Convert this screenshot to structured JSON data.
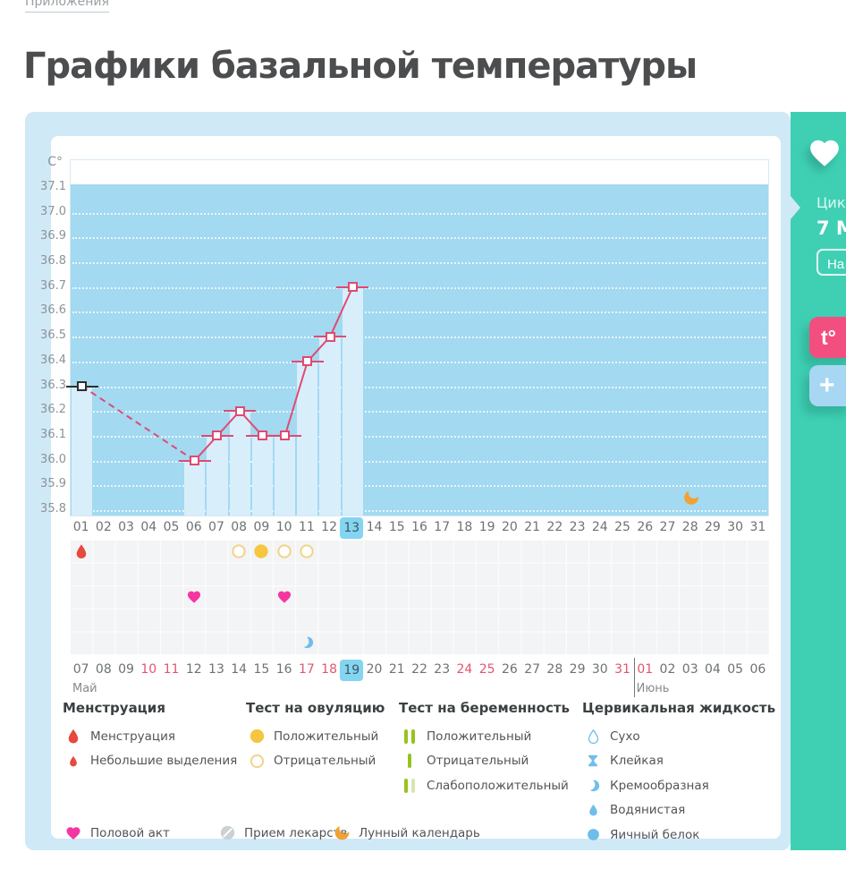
{
  "header": {
    "breadcrumb": "Приложения",
    "title": "Графики базальной температуры"
  },
  "chart_data": {
    "type": "line",
    "title": "Графики базальной температуры",
    "unit_label": "C°",
    "ylim": [
      35.8,
      37.1
    ],
    "y_ticks": [
      "37.1",
      "37.0",
      "36.9",
      "36.8",
      "36.7",
      "36.6",
      "36.5",
      "36.4",
      "36.3",
      "36.2",
      "36.1",
      "36.0",
      "35.9",
      "35.8"
    ],
    "x_cycle_days": [
      "01",
      "02",
      "03",
      "04",
      "05",
      "06",
      "07",
      "08",
      "09",
      "10",
      "11",
      "12",
      "13",
      "14",
      "15",
      "16",
      "17",
      "18",
      "19",
      "20",
      "21",
      "22",
      "23",
      "24",
      "25",
      "26",
      "27",
      "28",
      "29",
      "30",
      "31"
    ],
    "selected_cycle_day": "13",
    "points": [
      {
        "day": 1,
        "temp": 36.3,
        "marker": "black"
      },
      {
        "day": 6,
        "temp": 36.0,
        "marker": "pink"
      },
      {
        "day": 7,
        "temp": 36.1,
        "marker": "pink"
      },
      {
        "day": 8,
        "temp": 36.2,
        "marker": "pink"
      },
      {
        "day": 9,
        "temp": 36.1,
        "marker": "pink"
      },
      {
        "day": 10,
        "temp": 36.1,
        "marker": "pink"
      },
      {
        "day": 11,
        "temp": 36.4,
        "marker": "pink"
      },
      {
        "day": 12,
        "temp": 36.5,
        "marker": "pink"
      },
      {
        "day": 13,
        "temp": 36.7,
        "marker": "pink"
      }
    ],
    "line_segments": [
      {
        "from": 1,
        "to": 6,
        "style": "dashed"
      },
      {
        "from": 6,
        "to": 13,
        "style": "solid"
      }
    ],
    "plot_icons": [
      {
        "day": 28,
        "temp": 35.85,
        "icon": "moon"
      }
    ]
  },
  "icon_grid": {
    "rows": 5,
    "icons": [
      {
        "day": 1,
        "row": 1,
        "icon": "menstruation-drop"
      },
      {
        "day": 8,
        "row": 1,
        "icon": "ovulation-negative"
      },
      {
        "day": 9,
        "row": 1,
        "icon": "ovulation-positive"
      },
      {
        "day": 10,
        "row": 1,
        "icon": "ovulation-negative"
      },
      {
        "day": 11,
        "row": 1,
        "icon": "ovulation-negative"
      },
      {
        "day": 6,
        "row": 3,
        "icon": "intercourse-heart"
      },
      {
        "day": 10,
        "row": 3,
        "icon": "intercourse-heart"
      },
      {
        "day": 11,
        "row": 5,
        "icon": "cf-creamy"
      }
    ]
  },
  "date_axis": {
    "selected": "19",
    "days": [
      {
        "label": "07",
        "weekend": false
      },
      {
        "label": "08",
        "weekend": false
      },
      {
        "label": "09",
        "weekend": false
      },
      {
        "label": "10",
        "weekend": true
      },
      {
        "label": "11",
        "weekend": true
      },
      {
        "label": "12",
        "weekend": false
      },
      {
        "label": "13",
        "weekend": false
      },
      {
        "label": "14",
        "weekend": false
      },
      {
        "label": "15",
        "weekend": false
      },
      {
        "label": "16",
        "weekend": false
      },
      {
        "label": "17",
        "weekend": true
      },
      {
        "label": "18",
        "weekend": true
      },
      {
        "label": "19",
        "weekend": false
      },
      {
        "label": "20",
        "weekend": false
      },
      {
        "label": "21",
        "weekend": false
      },
      {
        "label": "22",
        "weekend": false
      },
      {
        "label": "23",
        "weekend": false
      },
      {
        "label": "24",
        "weekend": true
      },
      {
        "label": "25",
        "weekend": true
      },
      {
        "label": "26",
        "weekend": false
      },
      {
        "label": "27",
        "weekend": false
      },
      {
        "label": "28",
        "weekend": false
      },
      {
        "label": "29",
        "weekend": false
      },
      {
        "label": "30",
        "weekend": false
      },
      {
        "label": "31",
        "weekend": true
      },
      {
        "label": "01",
        "weekend": true
      },
      {
        "label": "02",
        "weekend": false
      },
      {
        "label": "03",
        "weekend": false
      },
      {
        "label": "04",
        "weekend": false
      },
      {
        "label": "05",
        "weekend": false
      },
      {
        "label": "06",
        "weekend": false
      }
    ],
    "months": [
      {
        "label": "Май",
        "index": 0
      },
      {
        "label": "Июнь",
        "index": 25
      }
    ],
    "divider_index": 25
  },
  "legend": {
    "groups": [
      {
        "title": "Менструация",
        "items": [
          {
            "icon": "menstruation-drop",
            "label": "Менструация"
          },
          {
            "icon": "menstruation-drop-small",
            "label": "Небольшие выделения"
          }
        ]
      },
      {
        "title": "Тест на овуляцию",
        "items": [
          {
            "icon": "ovulation-positive",
            "label": "Положительный"
          },
          {
            "icon": "ovulation-negative",
            "label": "Отрицательный"
          }
        ]
      },
      {
        "title": "Тест на беременность",
        "items": [
          {
            "icon": "pregnancy-positive",
            "label": "Положительный"
          },
          {
            "icon": "pregnancy-negative",
            "label": "Отрицательный"
          },
          {
            "icon": "pregnancy-weak",
            "label": "Слабоположительный"
          }
        ]
      },
      {
        "title": "Цервикальная жидкость",
        "items": [
          {
            "icon": "cf-dry",
            "label": "Сухо"
          },
          {
            "icon": "cf-sticky",
            "label": "Клейкая"
          },
          {
            "icon": "cf-creamy",
            "label": "Кремообразная"
          },
          {
            "icon": "cf-watery",
            "label": "Водянистая"
          },
          {
            "icon": "cf-eggwhite",
            "label": "Яичный белок"
          }
        ]
      }
    ],
    "extra": [
      {
        "icon": "intercourse-heart",
        "label": "Половой акт"
      },
      {
        "icon": "medication",
        "label": "Прием лекарств"
      },
      {
        "icon": "moon",
        "label": "Лунный календарь"
      }
    ]
  },
  "sidebar": {
    "cycle_label": "Цик",
    "cycle_date": "7 М",
    "button_label": "На",
    "temp_button": "t°",
    "add_button": "+"
  },
  "colors": {
    "accent_teal": "#3fd0b4",
    "panel_blue": "#cfe9f7",
    "plot_blue": "#a3d9f1",
    "bar_light": "#d8eefb",
    "line_pink": "#e04a72",
    "weekend_pink": "#e2556f",
    "highlight_blue": "#83d5f2",
    "red": "#e6493d",
    "yellow": "#f6c640",
    "yellow_outline": "#f1d489",
    "green": "#97c220",
    "green_pale": "#d7e6ad",
    "heart_pink": "#f536a2",
    "cf_blue": "#6fbdea",
    "moon_orange": "#f2a134",
    "pink_button": "#f24e80",
    "blue_button": "#a8d7f3",
    "gray_icon": "#ccd1d3"
  }
}
